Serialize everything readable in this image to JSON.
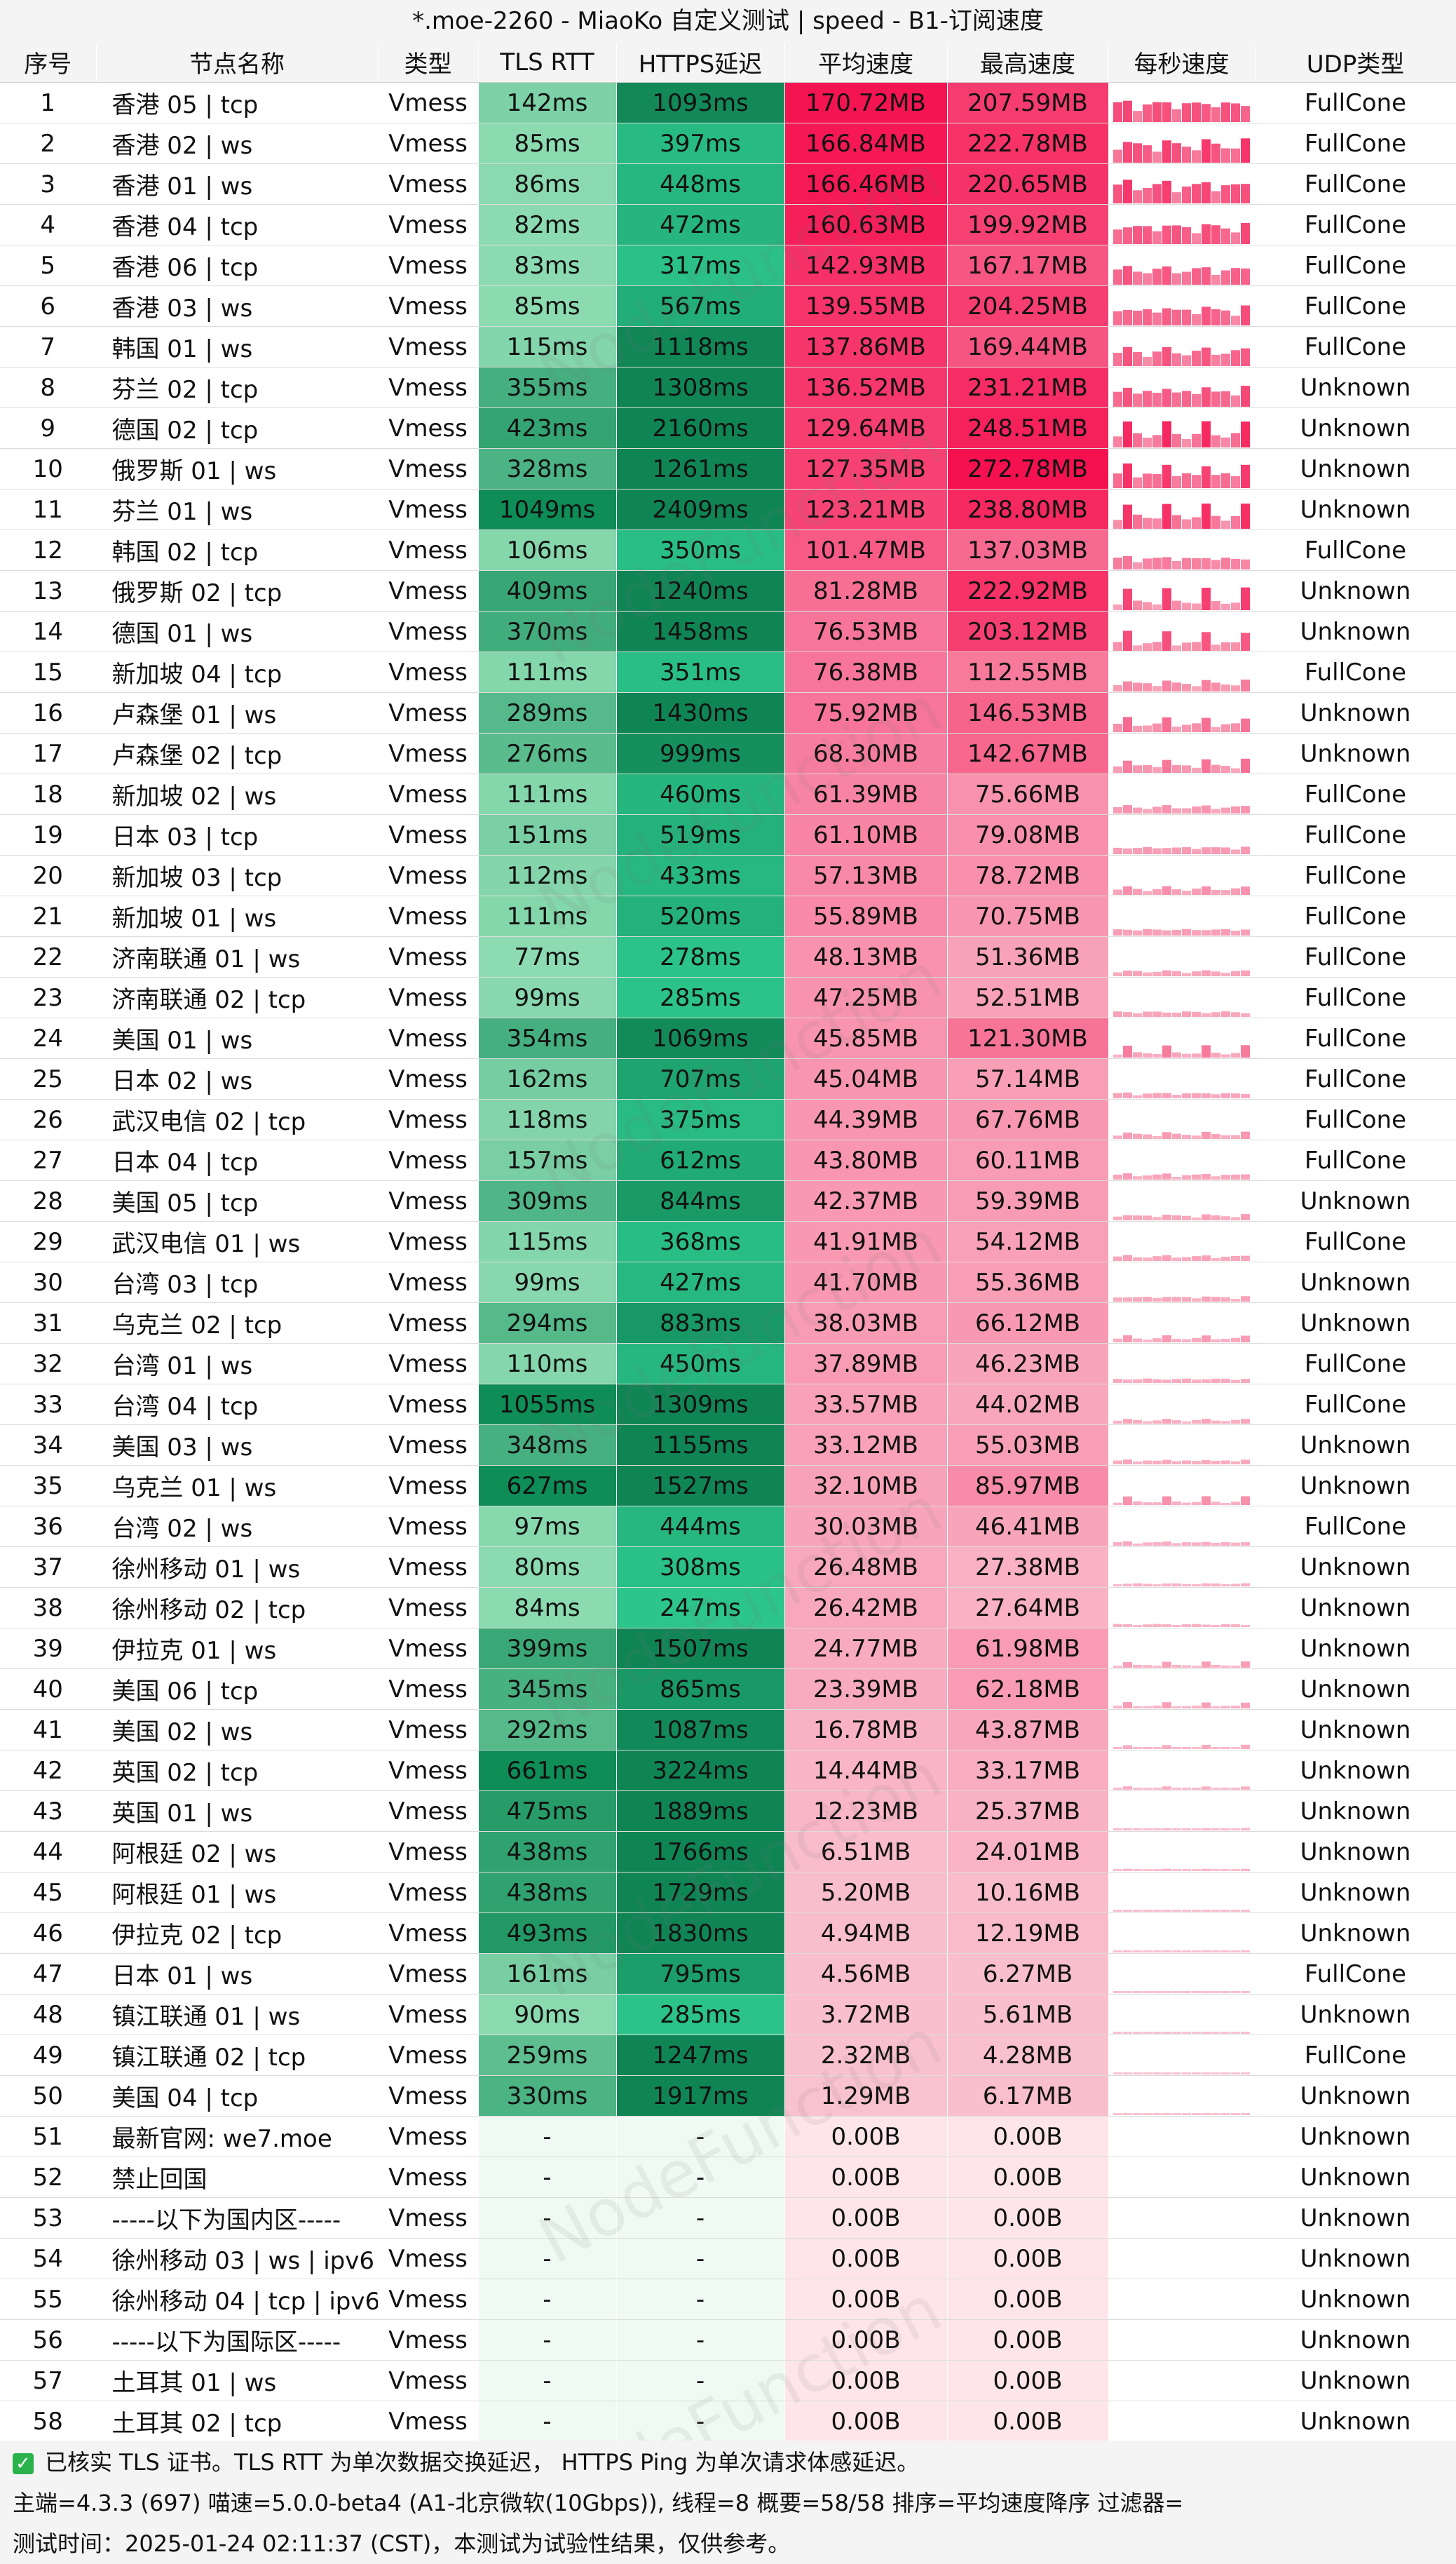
{
  "title": "*.moe-2260 - MiaoKo 自定义测试 | speed - B1-订阅速度",
  "headers": [
    "序号",
    "节点名称",
    "类型",
    "TLS RTT",
    "HTTPS延迟",
    "平均速度",
    "最高速度",
    "每秒速度",
    "UDP类型"
  ],
  "watermark": "NodeFunction",
  "rows": [
    {
      "idx": "1",
      "name": "香港 05 | tcp",
      "type": "Vmess",
      "tls": "142ms",
      "https": "1093ms",
      "avg": "170.72MB",
      "max": "207.59MB",
      "udp": "FullCone"
    },
    {
      "idx": "2",
      "name": "香港 02 | ws",
      "type": "Vmess",
      "tls": "85ms",
      "https": "397ms",
      "avg": "166.84MB",
      "max": "222.78MB",
      "udp": "FullCone"
    },
    {
      "idx": "3",
      "name": "香港 01 | ws",
      "type": "Vmess",
      "tls": "86ms",
      "https": "448ms",
      "avg": "166.46MB",
      "max": "220.65MB",
      "udp": "FullCone"
    },
    {
      "idx": "4",
      "name": "香港 04 | tcp",
      "type": "Vmess",
      "tls": "82ms",
      "https": "472ms",
      "avg": "160.63MB",
      "max": "199.92MB",
      "udp": "FullCone"
    },
    {
      "idx": "5",
      "name": "香港 06 | tcp",
      "type": "Vmess",
      "tls": "83ms",
      "https": "317ms",
      "avg": "142.93MB",
      "max": "167.17MB",
      "udp": "FullCone"
    },
    {
      "idx": "6",
      "name": "香港 03 | ws",
      "type": "Vmess",
      "tls": "85ms",
      "https": "567ms",
      "avg": "139.55MB",
      "max": "204.25MB",
      "udp": "FullCone"
    },
    {
      "idx": "7",
      "name": "韩国 01 | ws",
      "type": "Vmess",
      "tls": "115ms",
      "https": "1118ms",
      "avg": "137.86MB",
      "max": "169.44MB",
      "udp": "FullCone"
    },
    {
      "idx": "8",
      "name": "芬兰 02 | tcp",
      "type": "Vmess",
      "tls": "355ms",
      "https": "1308ms",
      "avg": "136.52MB",
      "max": "231.21MB",
      "udp": "Unknown"
    },
    {
      "idx": "9",
      "name": "德国 02 | tcp",
      "type": "Vmess",
      "tls": "423ms",
      "https": "2160ms",
      "avg": "129.64MB",
      "max": "248.51MB",
      "udp": "Unknown"
    },
    {
      "idx": "10",
      "name": "俄罗斯 01 | ws",
      "type": "Vmess",
      "tls": "328ms",
      "https": "1261ms",
      "avg": "127.35MB",
      "max": "272.78MB",
      "udp": "Unknown"
    },
    {
      "idx": "11",
      "name": "芬兰 01 | ws",
      "type": "Vmess",
      "tls": "1049ms",
      "https": "2409ms",
      "avg": "123.21MB",
      "max": "238.80MB",
      "udp": "Unknown"
    },
    {
      "idx": "12",
      "name": "韩国 02 | tcp",
      "type": "Vmess",
      "tls": "106ms",
      "https": "350ms",
      "avg": "101.47MB",
      "max": "137.03MB",
      "udp": "FullCone"
    },
    {
      "idx": "13",
      "name": "俄罗斯 02 | tcp",
      "type": "Vmess",
      "tls": "409ms",
      "https": "1240ms",
      "avg": "81.28MB",
      "max": "222.92MB",
      "udp": "Unknown"
    },
    {
      "idx": "14",
      "name": "德国 01 | ws",
      "type": "Vmess",
      "tls": "370ms",
      "https": "1458ms",
      "avg": "76.53MB",
      "max": "203.12MB",
      "udp": "Unknown"
    },
    {
      "idx": "15",
      "name": "新加坡 04 | tcp",
      "type": "Vmess",
      "tls": "111ms",
      "https": "351ms",
      "avg": "76.38MB",
      "max": "112.55MB",
      "udp": "FullCone"
    },
    {
      "idx": "16",
      "name": "卢森堡 01 | ws",
      "type": "Vmess",
      "tls": "289ms",
      "https": "1430ms",
      "avg": "75.92MB",
      "max": "146.53MB",
      "udp": "Unknown"
    },
    {
      "idx": "17",
      "name": "卢森堡 02 | tcp",
      "type": "Vmess",
      "tls": "276ms",
      "https": "999ms",
      "avg": "68.30MB",
      "max": "142.67MB",
      "udp": "Unknown"
    },
    {
      "idx": "18",
      "name": "新加坡 02 | ws",
      "type": "Vmess",
      "tls": "111ms",
      "https": "460ms",
      "avg": "61.39MB",
      "max": "75.66MB",
      "udp": "FullCone"
    },
    {
      "idx": "19",
      "name": "日本 03 | tcp",
      "type": "Vmess",
      "tls": "151ms",
      "https": "519ms",
      "avg": "61.10MB",
      "max": "79.08MB",
      "udp": "FullCone"
    },
    {
      "idx": "20",
      "name": "新加坡 03 | tcp",
      "type": "Vmess",
      "tls": "112ms",
      "https": "433ms",
      "avg": "57.13MB",
      "max": "78.72MB",
      "udp": "FullCone"
    },
    {
      "idx": "21",
      "name": "新加坡 01 | ws",
      "type": "Vmess",
      "tls": "111ms",
      "https": "520ms",
      "avg": "55.89MB",
      "max": "70.75MB",
      "udp": "FullCone"
    },
    {
      "idx": "22",
      "name": "济南联通 01 | ws",
      "type": "Vmess",
      "tls": "77ms",
      "https": "278ms",
      "avg": "48.13MB",
      "max": "51.36MB",
      "udp": "FullCone"
    },
    {
      "idx": "23",
      "name": "济南联通 02 | tcp",
      "type": "Vmess",
      "tls": "99ms",
      "https": "285ms",
      "avg": "47.25MB",
      "max": "52.51MB",
      "udp": "FullCone"
    },
    {
      "idx": "24",
      "name": "美国 01 | ws",
      "type": "Vmess",
      "tls": "354ms",
      "https": "1069ms",
      "avg": "45.85MB",
      "max": "121.30MB",
      "udp": "FullCone"
    },
    {
      "idx": "25",
      "name": "日本 02 | ws",
      "type": "Vmess",
      "tls": "162ms",
      "https": "707ms",
      "avg": "45.04MB",
      "max": "57.14MB",
      "udp": "FullCone"
    },
    {
      "idx": "26",
      "name": "武汉电信 02 | tcp",
      "type": "Vmess",
      "tls": "118ms",
      "https": "375ms",
      "avg": "44.39MB",
      "max": "67.76MB",
      "udp": "FullCone"
    },
    {
      "idx": "27",
      "name": "日本 04 | tcp",
      "type": "Vmess",
      "tls": "157ms",
      "https": "612ms",
      "avg": "43.80MB",
      "max": "60.11MB",
      "udp": "FullCone"
    },
    {
      "idx": "28",
      "name": "美国 05 | tcp",
      "type": "Vmess",
      "tls": "309ms",
      "https": "844ms",
      "avg": "42.37MB",
      "max": "59.39MB",
      "udp": "Unknown"
    },
    {
      "idx": "29",
      "name": "武汉电信 01 | ws",
      "type": "Vmess",
      "tls": "115ms",
      "https": "368ms",
      "avg": "41.91MB",
      "max": "54.12MB",
      "udp": "FullCone"
    },
    {
      "idx": "30",
      "name": "台湾 03 | tcp",
      "type": "Vmess",
      "tls": "99ms",
      "https": "427ms",
      "avg": "41.70MB",
      "max": "55.36MB",
      "udp": "Unknown"
    },
    {
      "idx": "31",
      "name": "乌克兰 02 | tcp",
      "type": "Vmess",
      "tls": "294ms",
      "https": "883ms",
      "avg": "38.03MB",
      "max": "66.12MB",
      "udp": "Unknown"
    },
    {
      "idx": "32",
      "name": "台湾 01 | ws",
      "type": "Vmess",
      "tls": "110ms",
      "https": "450ms",
      "avg": "37.89MB",
      "max": "46.23MB",
      "udp": "FullCone"
    },
    {
      "idx": "33",
      "name": "台湾 04 | tcp",
      "type": "Vmess",
      "tls": "1055ms",
      "https": "1309ms",
      "avg": "33.57MB",
      "max": "44.02MB",
      "udp": "FullCone"
    },
    {
      "idx": "34",
      "name": "美国 03 | ws",
      "type": "Vmess",
      "tls": "348ms",
      "https": "1155ms",
      "avg": "33.12MB",
      "max": "55.03MB",
      "udp": "Unknown"
    },
    {
      "idx": "35",
      "name": "乌克兰 01 | ws",
      "type": "Vmess",
      "tls": "627ms",
      "https": "1527ms",
      "avg": "32.10MB",
      "max": "85.97MB",
      "udp": "Unknown"
    },
    {
      "idx": "36",
      "name": "台湾 02 | ws",
      "type": "Vmess",
      "tls": "97ms",
      "https": "444ms",
      "avg": "30.03MB",
      "max": "46.41MB",
      "udp": "FullCone"
    },
    {
      "idx": "37",
      "name": "徐州移动 01 | ws",
      "type": "Vmess",
      "tls": "80ms",
      "https": "308ms",
      "avg": "26.48MB",
      "max": "27.38MB",
      "udp": "Unknown"
    },
    {
      "idx": "38",
      "name": "徐州移动 02 | tcp",
      "type": "Vmess",
      "tls": "84ms",
      "https": "247ms",
      "avg": "26.42MB",
      "max": "27.64MB",
      "udp": "Unknown"
    },
    {
      "idx": "39",
      "name": "伊拉克 01 | ws",
      "type": "Vmess",
      "tls": "399ms",
      "https": "1507ms",
      "avg": "24.77MB",
      "max": "61.98MB",
      "udp": "Unknown"
    },
    {
      "idx": "40",
      "name": "美国 06 | tcp",
      "type": "Vmess",
      "tls": "345ms",
      "https": "865ms",
      "avg": "23.39MB",
      "max": "62.18MB",
      "udp": "Unknown"
    },
    {
      "idx": "41",
      "name": "美国 02 | ws",
      "type": "Vmess",
      "tls": "292ms",
      "https": "1087ms",
      "avg": "16.78MB",
      "max": "43.87MB",
      "udp": "Unknown"
    },
    {
      "idx": "42",
      "name": "英国 02 | tcp",
      "type": "Vmess",
      "tls": "661ms",
      "https": "3224ms",
      "avg": "14.44MB",
      "max": "33.17MB",
      "udp": "Unknown"
    },
    {
      "idx": "43",
      "name": "英国 01 | ws",
      "type": "Vmess",
      "tls": "475ms",
      "https": "1889ms",
      "avg": "12.23MB",
      "max": "25.37MB",
      "udp": "Unknown"
    },
    {
      "idx": "44",
      "name": "阿根廷 02 | ws",
      "type": "Vmess",
      "tls": "438ms",
      "https": "1766ms",
      "avg": "6.51MB",
      "max": "24.01MB",
      "udp": "Unknown"
    },
    {
      "idx": "45",
      "name": "阿根廷 01 | ws",
      "type": "Vmess",
      "tls": "438ms",
      "https": "1729ms",
      "avg": "5.20MB",
      "max": "10.16MB",
      "udp": "Unknown"
    },
    {
      "idx": "46",
      "name": "伊拉克 02 | tcp",
      "type": "Vmess",
      "tls": "493ms",
      "https": "1830ms",
      "avg": "4.94MB",
      "max": "12.19MB",
      "udp": "Unknown"
    },
    {
      "idx": "47",
      "name": "日本 01 | ws",
      "type": "Vmess",
      "tls": "161ms",
      "https": "795ms",
      "avg": "4.56MB",
      "max": "6.27MB",
      "udp": "FullCone"
    },
    {
      "idx": "48",
      "name": "镇江联通 01 | ws",
      "type": "Vmess",
      "tls": "90ms",
      "https": "285ms",
      "avg": "3.72MB",
      "max": "5.61MB",
      "udp": "Unknown"
    },
    {
      "idx": "49",
      "name": "镇江联通 02 | tcp",
      "type": "Vmess",
      "tls": "259ms",
      "https": "1247ms",
      "avg": "2.32MB",
      "max": "4.28MB",
      "udp": "FullCone"
    },
    {
      "idx": "50",
      "name": "美国 04 | tcp",
      "type": "Vmess",
      "tls": "330ms",
      "https": "1917ms",
      "avg": "1.29MB",
      "max": "6.17MB",
      "udp": "Unknown"
    },
    {
      "idx": "51",
      "name": "最新官网: we7.moe",
      "type": "Vmess",
      "tls": "-",
      "https": "-",
      "avg": "0.00B",
      "max": "0.00B",
      "udp": "Unknown"
    },
    {
      "idx": "52",
      "name": "禁止回国",
      "type": "Vmess",
      "tls": "-",
      "https": "-",
      "avg": "0.00B",
      "max": "0.00B",
      "udp": "Unknown"
    },
    {
      "idx": "53",
      "name": "-----以下为国内区-----",
      "type": "Vmess",
      "tls": "-",
      "https": "-",
      "avg": "0.00B",
      "max": "0.00B",
      "udp": "Unknown"
    },
    {
      "idx": "54",
      "name": "徐州移动 03 | ws | ipv6",
      "type": "Vmess",
      "tls": "-",
      "https": "-",
      "avg": "0.00B",
      "max": "0.00B",
      "udp": "Unknown"
    },
    {
      "idx": "55",
      "name": "徐州移动 04 | tcp | ipv6",
      "type": "Vmess",
      "tls": "-",
      "https": "-",
      "avg": "0.00B",
      "max": "0.00B",
      "udp": "Unknown"
    },
    {
      "idx": "56",
      "name": "-----以下为国际区-----",
      "type": "Vmess",
      "tls": "-",
      "https": "-",
      "avg": "0.00B",
      "max": "0.00B",
      "udp": "Unknown"
    },
    {
      "idx": "57",
      "name": "土耳其 01 | ws",
      "type": "Vmess",
      "tls": "-",
      "https": "-",
      "avg": "0.00B",
      "max": "0.00B",
      "udp": "Unknown"
    },
    {
      "idx": "58",
      "name": "土耳其 02 | tcp",
      "type": "Vmess",
      "tls": "-",
      "https": "-",
      "avg": "0.00B",
      "max": "0.00B",
      "udp": "Unknown"
    }
  ],
  "footer": {
    "line1": "已核实 TLS 证书。TLS RTT 为单次数据交换延迟， HTTPS Ping 为单次请求体感延迟。",
    "line2": "主端=4.3.3 (697) 喵速=5.0.0-beta4 (A1-北京微软(10Gbps)), 线程=8 概要=58/58 排序=平均速度降序 过滤器=",
    "line3": "测试时间：2025-01-24 02:11:37 (CST)，本测试为试验性结果，仅供参考。"
  },
  "colors": {
    "header_bg": "#f4f4f4",
    "tls_light": "#8fdcb3",
    "tls_dark": "#0e8d57",
    "https_mid": "#2cc58a",
    "https_dark": "#108554",
    "speed_hot": "#f5104f",
    "speed_light": "#f9c3d0",
    "empty_green": "#eefaf3",
    "empty_pink": "#fde5ea"
  }
}
